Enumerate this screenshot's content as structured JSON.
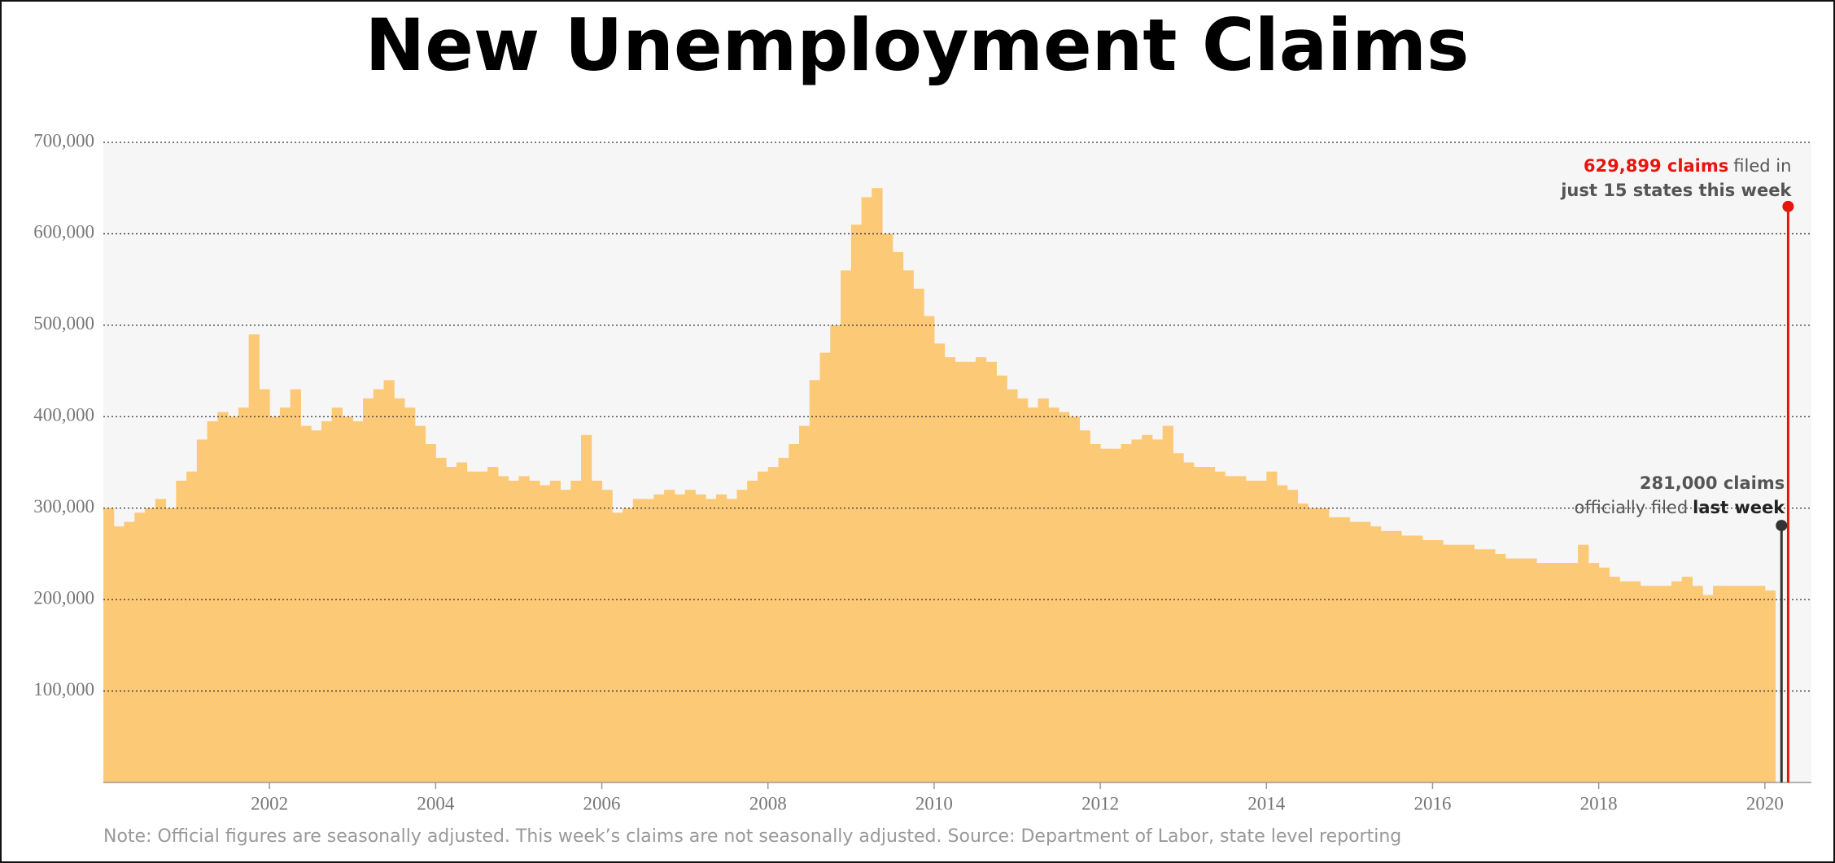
{
  "chart_data": {
    "type": "bar",
    "title": "New Unemployment Claims",
    "note": "Note: Official figures are seasonally adjusted. This week’s claims are not seasonally adjusted. Source: Department of Labor, state level reporting",
    "x": [
      2000,
      2000.125,
      2000.25,
      2000.375,
      2000.5,
      2000.625,
      2000.75,
      2000.875,
      2001,
      2001.125,
      2001.25,
      2001.375,
      2001.5,
      2001.625,
      2001.75,
      2001.875,
      2002,
      2002.125,
      2002.25,
      2002.375,
      2002.5,
      2002.625,
      2002.75,
      2002.875,
      2003,
      2003.125,
      2003.25,
      2003.375,
      2003.5,
      2003.625,
      2003.75,
      2003.875,
      2004,
      2004.125,
      2004.25,
      2004.375,
      2004.5,
      2004.625,
      2004.75,
      2004.875,
      2005,
      2005.125,
      2005.25,
      2005.375,
      2005.5,
      2005.625,
      2005.75,
      2005.875,
      2006,
      2006.125,
      2006.25,
      2006.375,
      2006.5,
      2006.625,
      2006.75,
      2006.875,
      2007,
      2007.125,
      2007.25,
      2007.375,
      2007.5,
      2007.625,
      2007.75,
      2007.875,
      2008,
      2008.125,
      2008.25,
      2008.375,
      2008.5,
      2008.625,
      2008.75,
      2008.875,
      2009,
      2009.125,
      2009.25,
      2009.375,
      2009.5,
      2009.625,
      2009.75,
      2009.875,
      2010,
      2010.125,
      2010.25,
      2010.375,
      2010.5,
      2010.625,
      2010.75,
      2010.875,
      2011,
      2011.125,
      2011.25,
      2011.375,
      2011.5,
      2011.625,
      2011.75,
      2011.875,
      2012,
      2012.125,
      2012.25,
      2012.375,
      2012.5,
      2012.625,
      2012.75,
      2012.875,
      2013,
      2013.125,
      2013.25,
      2013.375,
      2013.5,
      2013.625,
      2013.75,
      2013.875,
      2014,
      2014.125,
      2014.25,
      2014.375,
      2014.5,
      2014.625,
      2014.75,
      2014.875,
      2015,
      2015.125,
      2015.25,
      2015.375,
      2015.5,
      2015.625,
      2015.75,
      2015.875,
      2016,
      2016.125,
      2016.25,
      2016.375,
      2016.5,
      2016.625,
      2016.75,
      2016.875,
      2017,
      2017.125,
      2017.25,
      2017.375,
      2017.5,
      2017.625,
      2017.75,
      2017.875,
      2018,
      2018.125,
      2018.25,
      2018.375,
      2018.5,
      2018.625,
      2018.75,
      2018.875,
      2019,
      2019.125,
      2019.25,
      2019.375,
      2019.5,
      2019.625,
      2019.75,
      2019.875,
      2020
    ],
    "series": [
      {
        "color": "#fcc977",
        "values": [
          300000,
          280000,
          285000,
          295000,
          300000,
          310000,
          300000,
          330000,
          340000,
          375000,
          395000,
          405000,
          400000,
          410000,
          490000,
          430000,
          400000,
          410000,
          430000,
          390000,
          385000,
          395000,
          410000,
          400000,
          395000,
          420000,
          430000,
          440000,
          420000,
          410000,
          390000,
          370000,
          355000,
          345000,
          350000,
          340000,
          340000,
          345000,
          335000,
          330000,
          335000,
          330000,
          325000,
          330000,
          320000,
          330000,
          380000,
          330000,
          320000,
          295000,
          300000,
          310000,
          310000,
          315000,
          320000,
          315000,
          320000,
          315000,
          310000,
          315000,
          310000,
          320000,
          330000,
          340000,
          345000,
          355000,
          370000,
          390000,
          440000,
          470000,
          500000,
          560000,
          610000,
          640000,
          650000,
          600000,
          580000,
          560000,
          540000,
          510000,
          480000,
          465000,
          460000,
          460000,
          465000,
          460000,
          445000,
          430000,
          420000,
          410000,
          420000,
          410000,
          405000,
          400000,
          385000,
          370000,
          365000,
          365000,
          370000,
          375000,
          380000,
          375000,
          390000,
          360000,
          350000,
          345000,
          345000,
          340000,
          335000,
          335000,
          330000,
          330000,
          340000,
          325000,
          320000,
          305000,
          300000,
          300000,
          290000,
          290000,
          285000,
          285000,
          280000,
          275000,
          275000,
          270000,
          270000,
          265000,
          265000,
          260000,
          260000,
          260000,
          255000,
          255000,
          250000,
          245000,
          245000,
          245000,
          240000,
          240000,
          240000,
          240000,
          260000,
          240000,
          235000,
          225000,
          220000,
          220000,
          215000,
          215000,
          215000,
          220000,
          225000,
          215000,
          205000,
          215000,
          215000,
          215000,
          215000,
          215000,
          210000
        ]
      }
    ],
    "highlights": [
      {
        "x": 2020.28,
        "value": 629899,
        "color": "#e8150f",
        "label": "629,899 claims",
        "text": "filed in",
        "text2": "just 15 states this week"
      },
      {
        "x": 2020.2,
        "value": 281000,
        "color": "#333333",
        "label": "281,000 claims",
        "text": "officially filed",
        "text2": "last week"
      }
    ],
    "xlim": [
      2000,
      2020.56
    ],
    "xticks": [
      2002,
      2004,
      2006,
      2008,
      2010,
      2012,
      2014,
      2016,
      2018,
      2020
    ],
    "ylim": [
      0,
      700000
    ],
    "yticks": [
      {
        "value": 100000,
        "label": "100,000"
      },
      {
        "value": 200000,
        "label": "200,000"
      },
      {
        "value": 300000,
        "label": "300,000"
      },
      {
        "value": 400000,
        "label": "400,000"
      },
      {
        "value": 500000,
        "label": "500,000"
      },
      {
        "value": 600000,
        "label": "600,000"
      },
      {
        "value": 700000,
        "label": "700,000"
      }
    ],
    "grid": true
  }
}
